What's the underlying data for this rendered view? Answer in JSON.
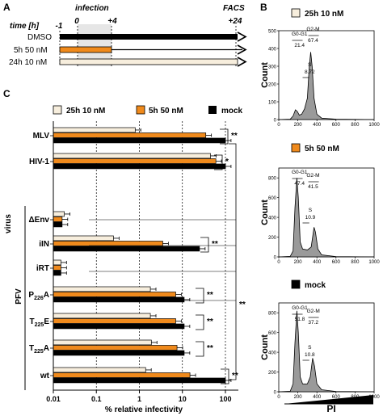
{
  "panel_labels": {
    "a": "A",
    "b": "B",
    "c": "C"
  },
  "panel_a": {
    "time_label": "time [h]",
    "infection_label": "infection",
    "facs_label": "FACS",
    "ticks": [
      "-1",
      "0",
      "+4",
      "+24"
    ],
    "rows": [
      {
        "label": "DMSO",
        "color": "#000000"
      },
      {
        "label": "5h 50 nM",
        "color": "#F08A1C"
      },
      {
        "label": "24h 10 nM",
        "color": "#F7EEDD"
      }
    ]
  },
  "panel_b": {
    "x_axis_label": "PI",
    "y_axis_label": "Count",
    "x_ticks": [
      "0",
      "200",
      "400",
      "600",
      "800",
      "1000"
    ],
    "histograms": [
      {
        "legend": "25h 10 nM",
        "legend_color": "#F7EEDD",
        "y_ticks": [
          "0",
          "100",
          "200",
          "300",
          "400",
          "500"
        ],
        "g0g1_label": "G0-G1",
        "g0g1_value": "21.4",
        "g2m_label": "G2-M",
        "g2m_value": "67.4",
        "s_label": "S",
        "s_value": "8.72"
      },
      {
        "legend": "5h 50 nM",
        "legend_color": "#F08A1C",
        "y_ticks": [
          "0",
          "200",
          "400",
          "600",
          "800"
        ],
        "g0g1_label": "G0-G1",
        "g0g1_value": "47.4",
        "g2m_label": "G2-M",
        "g2m_value": "41.5",
        "s_label": "S",
        "s_value": "10.9"
      },
      {
        "legend": "mock",
        "legend_color": "#000000",
        "y_ticks": [
          "0",
          "200",
          "400",
          "600",
          "800"
        ],
        "g0g1_label": "G0-G1",
        "g0g1_value": "51.8",
        "g2m_label": "G2-M",
        "g2m_value": "37.2",
        "s_label": "S",
        "s_value": "10.8"
      }
    ]
  },
  "chart_data": {
    "type": "bar",
    "orientation": "horizontal",
    "xlabel": "% relative infectivity",
    "ylabel": "virus",
    "x_scale": "log",
    "xlim": [
      0.01,
      200
    ],
    "x_ticks": [
      "0.01",
      "0.1",
      "1",
      "10",
      "100"
    ],
    "group_label": "PFV",
    "categories": [
      "MLV",
      "HIV-1",
      "ΔEnv",
      "iIN",
      "iRT",
      "P226A",
      "T225E",
      "T225A",
      "wt"
    ],
    "category_display": [
      [
        "MLV",
        ""
      ],
      [
        "HIV-1",
        ""
      ],
      [
        "ΔEnv",
        ""
      ],
      [
        "iIN",
        ""
      ],
      [
        "iRT",
        ""
      ],
      [
        "P",
        "226",
        "A"
      ],
      [
        "T",
        "225",
        "E"
      ],
      [
        "T",
        "225",
        "A"
      ],
      [
        "wt",
        ""
      ]
    ],
    "series": [
      {
        "name": "25h 10 nM",
        "color": "#F7EEDD",
        "values": [
          0.8,
          45,
          0.018,
          0.25,
          0.015,
          1.8,
          1.8,
          1.9,
          1.4
        ]
      },
      {
        "name": "5h 50 nM",
        "color": "#F08A1C",
        "values": [
          35,
          60,
          0.016,
          3.5,
          0.015,
          7,
          7,
          7.5,
          15
        ]
      },
      {
        "name": "mock",
        "color": "#000000",
        "values": [
          100,
          100,
          0.016,
          25,
          0.015,
          11,
          11,
          11,
          100
        ]
      }
    ],
    "significance": [
      "**",
      "*",
      "**",
      "**",
      "**",
      "**",
      "**",
      "**"
    ]
  }
}
